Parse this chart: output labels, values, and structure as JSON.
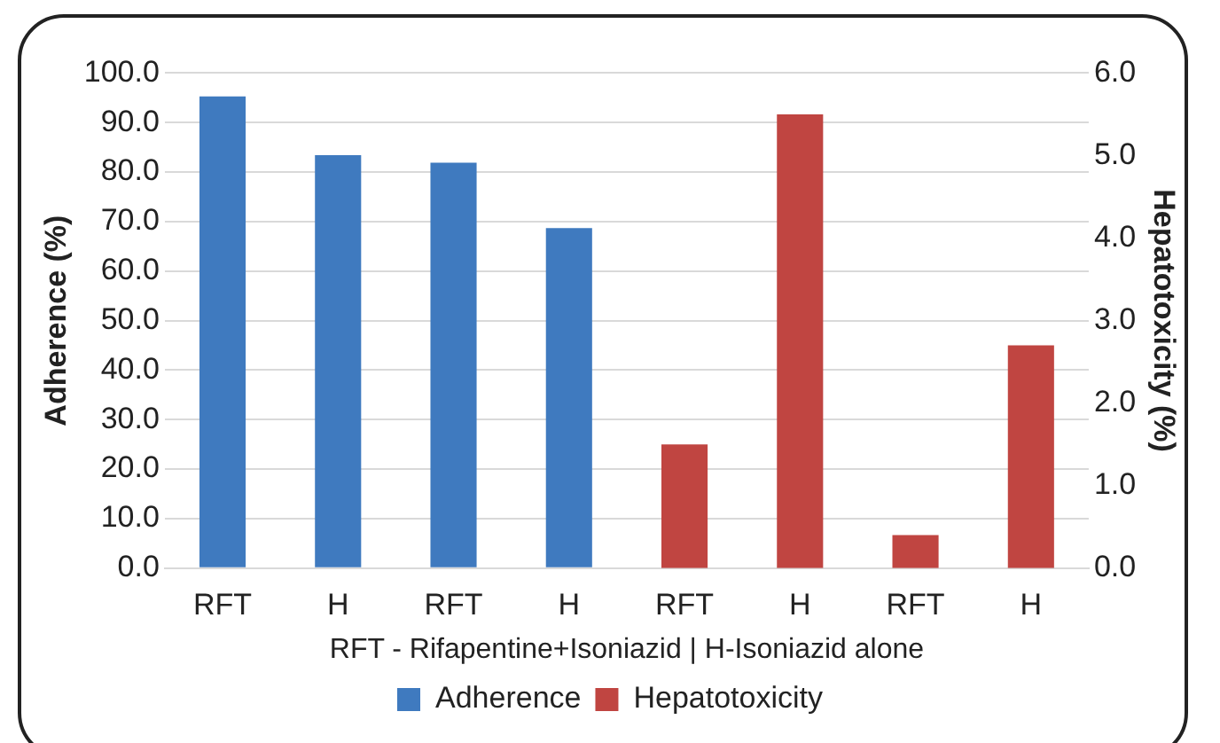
{
  "chart_data": {
    "type": "bar",
    "xlabel": "RFT - Rifapentine+Isoniazid | H-Isoniazid alone",
    "ylabel": "Adherence (%)",
    "y2label": "Hepatotoxicity (%)",
    "categories": [
      "RFT",
      "H",
      "RFT",
      "H",
      "RFT",
      "H",
      "RFT",
      "H"
    ],
    "series": [
      {
        "name": "Adherence",
        "color": "#3f7abf",
        "values": [
          95.3,
          83.4,
          81.9,
          68.7,
          null,
          null,
          null,
          null
        ]
      },
      {
        "name": "Hepatotoxicity",
        "color": "#c04541",
        "axis": "y2",
        "values": [
          null,
          null,
          null,
          null,
          1.5,
          5.5,
          0.4,
          2.7
        ]
      }
    ],
    "ylim": [
      0,
      100
    ],
    "yticks": [
      {
        "value": 0,
        "label": "0.0"
      },
      {
        "value": 10,
        "label": "10.0"
      },
      {
        "value": 20,
        "label": "20.0"
      },
      {
        "value": 30,
        "label": "30.0"
      },
      {
        "value": 40,
        "label": "40.0"
      },
      {
        "value": 50,
        "label": "50.0"
      },
      {
        "value": 60,
        "label": "60.0"
      },
      {
        "value": 70,
        "label": "70.0"
      },
      {
        "value": 80,
        "label": "80.0"
      },
      {
        "value": 90,
        "label": "90.0"
      },
      {
        "value": 100,
        "label": "100.0"
      }
    ],
    "y2lim": [
      0,
      6
    ],
    "y2ticks": [
      {
        "value": 0,
        "label": "0.0"
      },
      {
        "value": 1,
        "label": "1.0"
      },
      {
        "value": 2,
        "label": "2.0"
      },
      {
        "value": 3,
        "label": "3.0"
      },
      {
        "value": 4,
        "label": "4.0"
      },
      {
        "value": 5,
        "label": "5.0"
      },
      {
        "value": 6,
        "label": "6.0"
      }
    ],
    "grid": "y",
    "legend": "bottom"
  }
}
